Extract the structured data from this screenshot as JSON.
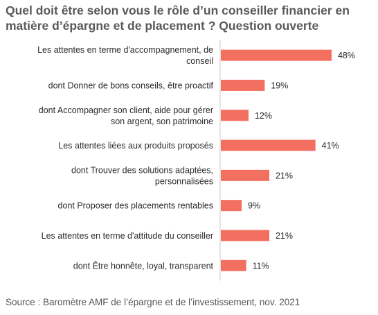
{
  "title": "Quel doit être selon vous le rôle d’un conseiller financier en matière d’épargne et de placement ? Question ouverte",
  "source": "Source : Baromètre AMF de l’épargne et de l’investissement, nov. 2021",
  "colors": {
    "bar": "#f36f5f",
    "axis": "#c8c8c8"
  },
  "chart_data": {
    "type": "bar",
    "orientation": "horizontal",
    "unit": "%",
    "xlim": [
      0,
      55
    ],
    "grid": false,
    "categories": [
      [
        "Les attentes en terme d'accompagnement, de",
        "conseil"
      ],
      [
        "dont Donner de bons conseils, être proactif"
      ],
      [
        "dont Accompagner son client, aide pour gérer",
        "son argent, son patrimoine"
      ],
      [
        "Les attentes liées aux produits proposés"
      ],
      [
        "dont Trouver des solutions adaptées,",
        "personnalisées"
      ],
      [
        "dont Proposer des placements rentables"
      ],
      [
        "Les attentes en terme d'attitude du conseiller"
      ],
      [
        "dont Être honnête, loyal, transparent"
      ]
    ],
    "values": [
      48,
      19,
      12,
      41,
      21,
      9,
      21,
      11
    ],
    "value_labels": [
      "48%",
      "19%",
      "12%",
      "41%",
      "21%",
      "9%",
      "21%",
      "11%"
    ]
  }
}
